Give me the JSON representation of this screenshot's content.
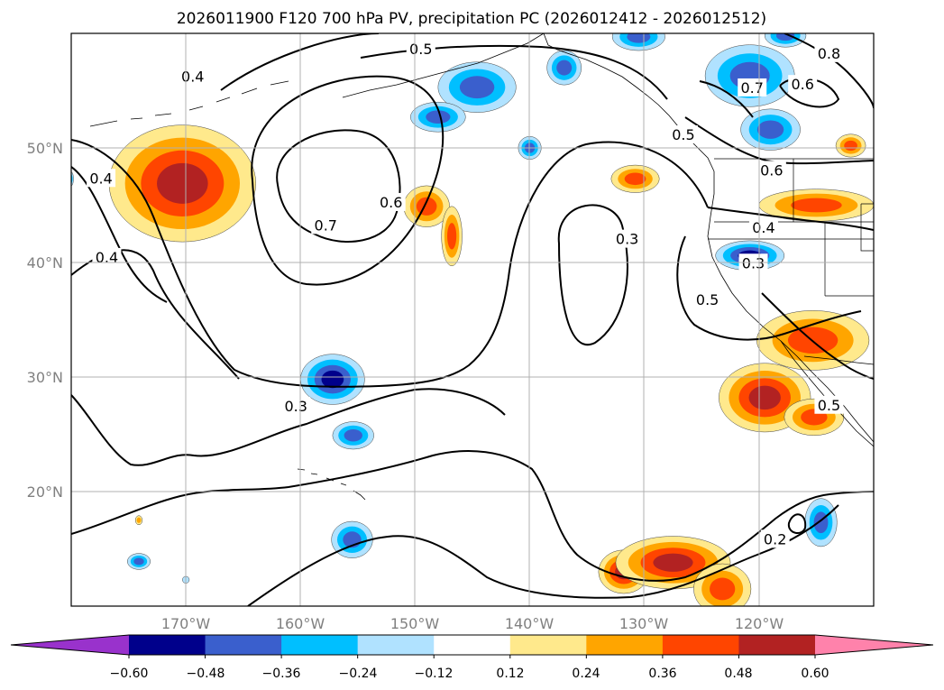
{
  "chart_data": {
    "type": "map-contour",
    "title": "2026011900 F120 700 hPa PV, precipitation PC (2026012412 - 2026012512)",
    "lon_range": [
      -180,
      -110
    ],
    "lat_range": [
      10,
      60
    ],
    "x_ticks": [
      {
        "value": -170,
        "label": "170°W"
      },
      {
        "value": -160,
        "label": "160°W"
      },
      {
        "value": -150,
        "label": "150°W"
      },
      {
        "value": -140,
        "label": "140°W"
      },
      {
        "value": -130,
        "label": "130°W"
      },
      {
        "value": -120,
        "label": "120°W"
      }
    ],
    "y_ticks": [
      {
        "value": 20,
        "label": "20°N"
      },
      {
        "value": 30,
        "label": "30°N"
      },
      {
        "value": 40,
        "label": "40°N"
      },
      {
        "value": 50,
        "label": "50°N"
      }
    ],
    "grid": true,
    "colorbar": {
      "orientation": "horizontal",
      "extend": "both",
      "bounds": [
        -0.6,
        -0.48,
        -0.36,
        -0.24,
        -0.12,
        0.12,
        0.24,
        0.36,
        0.48,
        0.6
      ],
      "colors": [
        "#9932CC",
        "#00008B",
        "#3A5FCD",
        "#00BFFF",
        "#B0E2FF",
        "#FFFFFF",
        "#FFE98C",
        "#FFA500",
        "#FF4500",
        "#B22222",
        "#FF82AB"
      ],
      "tick_labels": [
        "−0.60",
        "−0.48",
        "−0.36",
        "−0.24",
        "−0.12",
        "0.12",
        "0.24",
        "0.36",
        "0.48",
        "0.60"
      ]
    },
    "contour_levels": [
      0.2,
      0.3,
      0.4,
      0.5,
      0.6,
      0.7,
      0.8
    ],
    "contour_labels": [
      {
        "text": "0.5",
        "lon": -149.5,
        "lat": 58.6
      },
      {
        "text": "0.4",
        "lon": -177.4,
        "lat": 47.3
      },
      {
        "text": "0.4",
        "lon": -169.4,
        "lat": 56.2
      },
      {
        "text": "0.4",
        "lon": -176.9,
        "lat": 40.4
      },
      {
        "text": "0.7",
        "lon": -157.8,
        "lat": 43.2
      },
      {
        "text": "0.6",
        "lon": -152.1,
        "lat": 45.2
      },
      {
        "text": "0.3",
        "lon": -160.4,
        "lat": 27.4
      },
      {
        "text": "0.3",
        "lon": -131.5,
        "lat": 42.0
      },
      {
        "text": "0.5",
        "lon": -126.6,
        "lat": 51.1
      },
      {
        "text": "0.7",
        "lon": -120.6,
        "lat": 55.2
      },
      {
        "text": "0.6",
        "lon": -116.2,
        "lat": 55.5
      },
      {
        "text": "0.8",
        "lon": -113.9,
        "lat": 58.2
      },
      {
        "text": "0.6",
        "lon": -118.9,
        "lat": 48.0
      },
      {
        "text": "0.4",
        "lon": -119.6,
        "lat": 43.0
      },
      {
        "text": "0.3",
        "lon": -120.5,
        "lat": 39.9
      },
      {
        "text": "0.5",
        "lon": -124.5,
        "lat": 36.7
      },
      {
        "text": "0.5",
        "lon": -113.9,
        "lat": 27.5
      },
      {
        "text": "0.2",
        "lon": -118.6,
        "lat": 15.8
      }
    ],
    "precip_blobs": [
      {
        "lon": -170.3,
        "lat": 46.9,
        "rx": 6.4,
        "ry": 5.1,
        "value": 0.55
      },
      {
        "lon": -149.0,
        "lat": 44.9,
        "rx": 2.0,
        "ry": 1.8,
        "value": 0.4
      },
      {
        "lon": -146.8,
        "lat": 42.3,
        "rx": 0.9,
        "ry": 2.6,
        "value": 0.38
      },
      {
        "lon": -130.8,
        "lat": 47.3,
        "rx": 2.1,
        "ry": 1.2,
        "value": 0.4
      },
      {
        "lon": -115.0,
        "lat": 45.0,
        "rx": 5.0,
        "ry": 1.4,
        "value": 0.4
      },
      {
        "lon": -115.3,
        "lat": 33.2,
        "rx": 4.9,
        "ry": 2.6,
        "value": 0.45
      },
      {
        "lon": -119.5,
        "lat": 28.2,
        "rx": 4.0,
        "ry": 3.0,
        "value": 0.5
      },
      {
        "lon": -115.2,
        "lat": 26.5,
        "rx": 2.6,
        "ry": 1.6,
        "value": 0.45
      },
      {
        "lon": -131.8,
        "lat": 13.0,
        "rx": 2.2,
        "ry": 1.9,
        "value": 0.5
      },
      {
        "lon": -127.5,
        "lat": 13.8,
        "rx": 5.0,
        "ry": 2.3,
        "value": 0.5
      },
      {
        "lon": -123.2,
        "lat": 11.5,
        "rx": 2.5,
        "ry": 2.2,
        "value": 0.45
      },
      {
        "lon": -112.0,
        "lat": 50.2,
        "rx": 1.3,
        "ry": 1.0,
        "value": 0.4
      },
      {
        "lon": -174.1,
        "lat": 17.5,
        "rx": 0.3,
        "ry": 0.4,
        "value": 0.35
      },
      {
        "lon": -144.6,
        "lat": 55.3,
        "rx": 3.4,
        "ry": 2.2,
        "value": -0.4
      },
      {
        "lon": -148.0,
        "lat": 52.7,
        "rx": 2.4,
        "ry": 1.3,
        "value": -0.38
      },
      {
        "lon": -140.0,
        "lat": 50.0,
        "rx": 1.0,
        "ry": 1.0,
        "value": -0.36
      },
      {
        "lon": -120.8,
        "lat": 56.3,
        "rx": 3.9,
        "ry": 2.7,
        "value": -0.4
      },
      {
        "lon": -119.0,
        "lat": 51.6,
        "rx": 2.6,
        "ry": 1.8,
        "value": -0.38
      },
      {
        "lon": -137.0,
        "lat": 57.0,
        "rx": 1.5,
        "ry": 1.5,
        "value": -0.36
      },
      {
        "lon": -130.5,
        "lat": 59.7,
        "rx": 2.3,
        "ry": 1.2,
        "value": -0.36
      },
      {
        "lon": -117.7,
        "lat": 59.8,
        "rx": 1.8,
        "ry": 1.0,
        "value": -0.38
      },
      {
        "lon": -120.8,
        "lat": 40.6,
        "rx": 3.0,
        "ry": 1.3,
        "value": -0.48
      },
      {
        "lon": -157.2,
        "lat": 29.8,
        "rx": 2.8,
        "ry": 2.2,
        "value": -0.48
      },
      {
        "lon": -155.4,
        "lat": 24.9,
        "rx": 1.8,
        "ry": 1.2,
        "value": -0.38
      },
      {
        "lon": -155.5,
        "lat": 15.8,
        "rx": 1.8,
        "ry": 1.6,
        "value": -0.38
      },
      {
        "lon": -114.6,
        "lat": 17.3,
        "rx": 1.4,
        "ry": 2.1,
        "value": -0.4
      },
      {
        "lon": -174.1,
        "lat": 13.9,
        "rx": 1.0,
        "ry": 0.7,
        "value": -0.36
      },
      {
        "lon": -180.0,
        "lat": 47.3,
        "rx": 0.2,
        "ry": 0.6,
        "value": -0.3
      },
      {
        "lon": -170.0,
        "lat": 12.3,
        "rx": 0.3,
        "ry": 0.3,
        "value": -0.2
      }
    ]
  }
}
